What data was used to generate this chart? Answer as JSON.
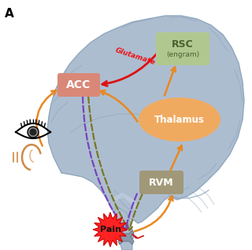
{
  "title_label": "A",
  "brain_color": "#adbdd0",
  "brain_outline_color": "#8fa8be",
  "acc_box_color": "#d98878",
  "acc_text": "ACC",
  "rsc_box_color": "#b0c890",
  "rsc_text_top": "RSC",
  "rsc_text_bot": "(engram)",
  "thalamus_color": "#f0aa60",
  "thalamus_text": "Thalamus",
  "rvm_box_color": "#a09878",
  "rvm_text": "RVM",
  "pain_text": "Pain",
  "pain_star_color": "#ff2222",
  "pain_star_edge": "#cc0000",
  "glutamate_text": "Glutamate",
  "glutamate_color": "#ee1111",
  "arrow_orange": "#e88820",
  "arrow_red": "#dd1111",
  "arrow_purple": "#7744bb",
  "arrow_olive": "#777722",
  "bg_color": "#ffffff",
  "eye_color": "#222222",
  "ear_color": "#d08844"
}
